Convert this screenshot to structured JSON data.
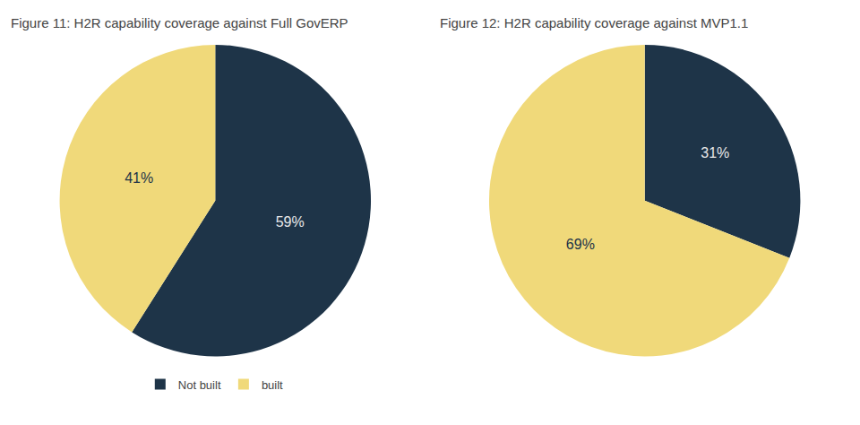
{
  "chart_data": [
    {
      "type": "pie",
      "title": "Figure 11: H2R capability coverage against Full GovERP",
      "categories": [
        "Not built",
        "built"
      ],
      "values": [
        59,
        41
      ],
      "value_labels": [
        "59%",
        "41%"
      ],
      "colors": [
        "#1e3448",
        "#f0d97a"
      ],
      "data_labels": true,
      "legend": "bottom"
    },
    {
      "type": "pie",
      "title": "Figure 12: H2R capability coverage against MVP1.1",
      "categories": [
        "Not built",
        "built"
      ],
      "values": [
        31,
        69
      ],
      "value_labels": [
        "31%",
        "69%"
      ],
      "colors": [
        "#1e3448",
        "#f0d97a"
      ],
      "data_labels": true,
      "legend": "bottom"
    }
  ]
}
